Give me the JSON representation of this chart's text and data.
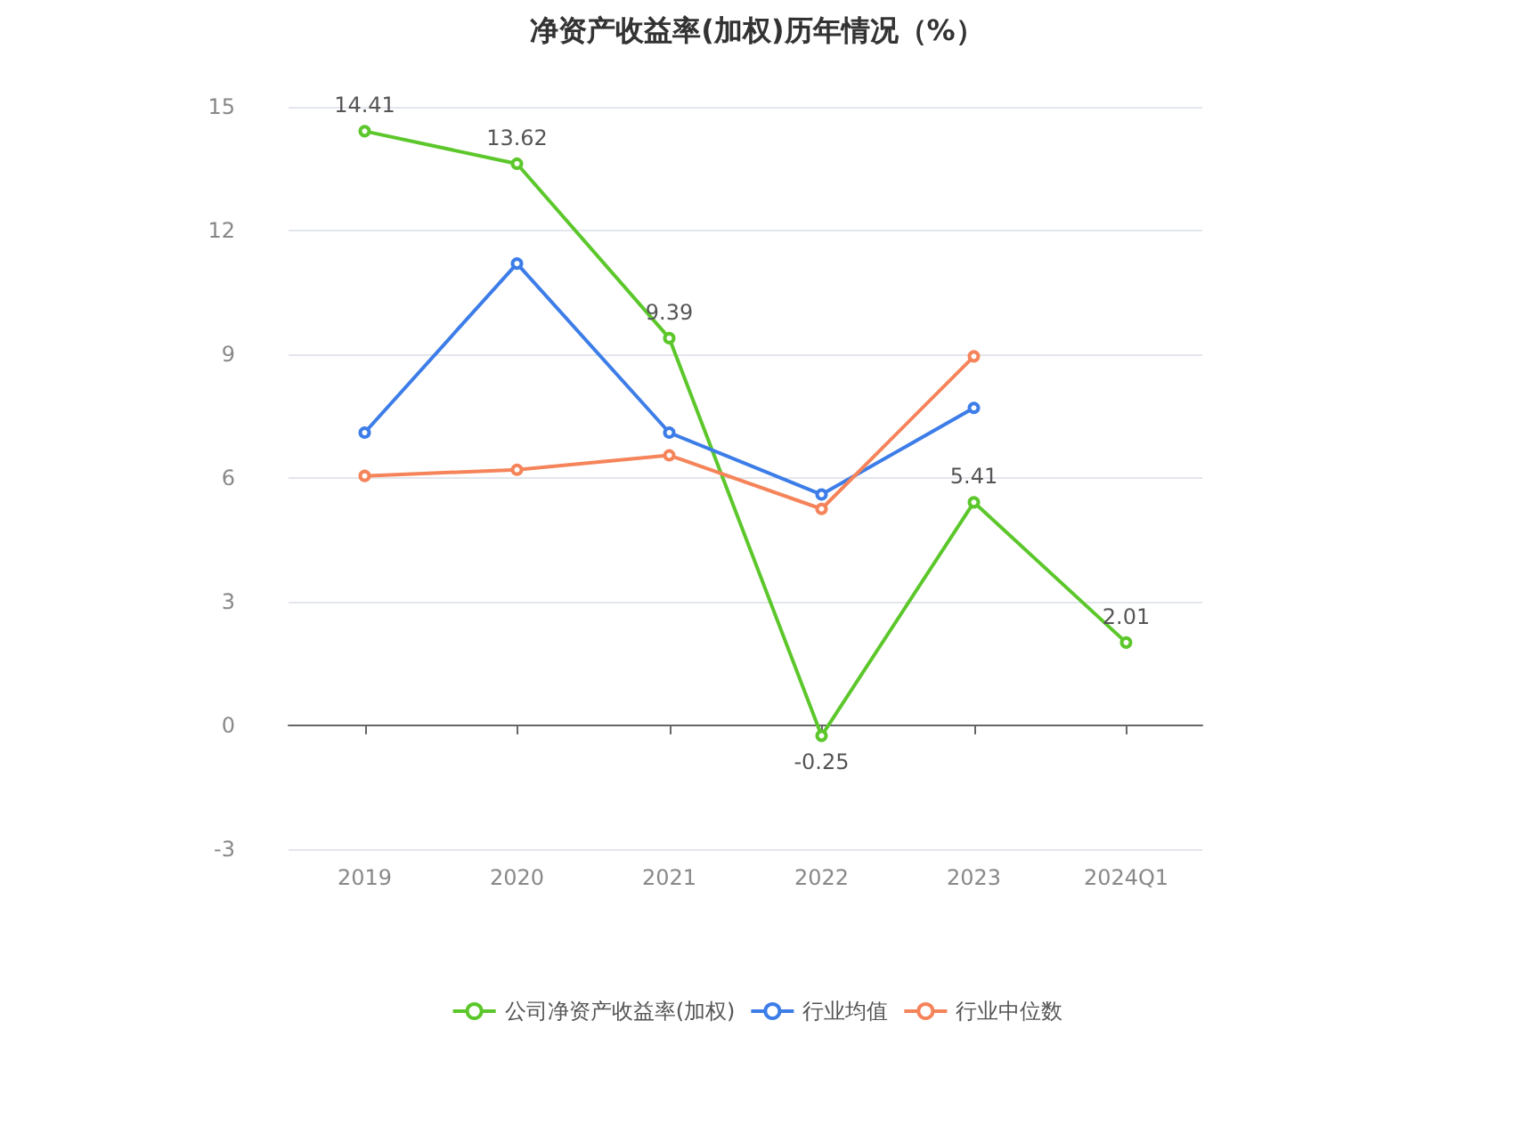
{
  "chart_data": {
    "type": "line",
    "title": "净资产收益率(加权)历年情况（%）",
    "categories": [
      "2019",
      "2020",
      "2021",
      "2022",
      "2023",
      "2024Q1"
    ],
    "series": [
      {
        "name": "公司净资产收益率(加权)",
        "color": "#5cc72b",
        "values": [
          14.41,
          13.62,
          9.39,
          -0.25,
          5.41,
          2.01
        ],
        "value_labels": [
          "14.41",
          "13.62",
          "9.39",
          "-0.25",
          "5.41",
          "2.01"
        ]
      },
      {
        "name": "行业均值",
        "color": "#3d7de8",
        "values": [
          7.1,
          11.2,
          7.1,
          5.6,
          7.7,
          null
        ]
      },
      {
        "name": "行业中位数",
        "color": "#f5845a",
        "values": [
          6.05,
          6.2,
          6.55,
          5.25,
          8.95,
          null
        ]
      }
    ],
    "ylim": [
      -3,
      15
    ],
    "yticks": [
      -3,
      0,
      3,
      6,
      9,
      12,
      15
    ],
    "grid": "y",
    "legend": "bottom",
    "marker": "circle",
    "line_style": "solid"
  }
}
